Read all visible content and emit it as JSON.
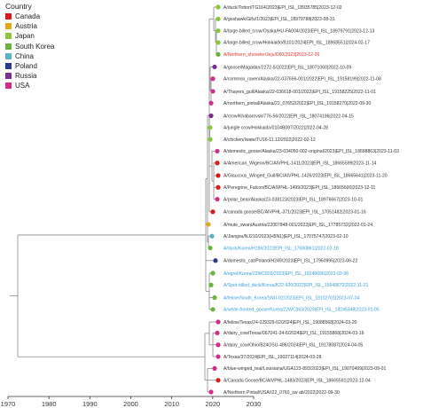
{
  "legend": {
    "title": "Country",
    "items": [
      {
        "label": "Canada",
        "color": "#d7191c"
      },
      {
        "label": "Austria",
        "color": "#e6a817"
      },
      {
        "label": "Japan",
        "color": "#8cc63f"
      },
      {
        "label": "South Korea",
        "color": "#6bb33a"
      },
      {
        "label": "China",
        "color": "#5ab4c4"
      },
      {
        "label": "Poland",
        "color": "#2b3a8f"
      },
      {
        "label": "Russia",
        "color": "#7b2d8e"
      },
      {
        "label": "USA",
        "color": "#d12e8b"
      }
    ]
  },
  "axis": {
    "ticks": [
      "1970",
      "1980",
      "1990",
      "2000",
      "2010",
      "2020",
      "2030"
    ]
  },
  "tips": [
    {
      "label": "A/duck/Tottori/TG164/2023|EPI_ISL_18935785|2023-12-02",
      "country": "Japan",
      "highlight": false
    },
    {
      "label": "A/goshawk/Gifu/1/2023|EPI_ISL_18979788|2023-08-31",
      "country": "Japan",
      "highlight": false
    },
    {
      "label": "A/large-billed_crow/Osaka/HU-FA004/2023|EPI_ISL_18979791|2023-12-13",
      "country": "Japan",
      "highlight": false
    },
    {
      "label": "A/large-billed_crow/Hokkaido/B101/2024|EPI_ISL_18968551|2024-02-17",
      "country": "Japan",
      "highlight": false
    },
    {
      "label": "A/Northern_shoveler/Jeju/D60/2023|2023-12-26",
      "country": "South Korea",
      "highlight": true,
      "highlight_color": "#e0312b"
    },
    {
      "label": "A/goose/Magadan/2272-5/2022|EPI_ISL_18071060|2022-10-09",
      "country": "Russia",
      "highlight": false
    },
    {
      "label": "A/common_raven/Alaska/22-037656-001/2022|EPI_ISL_19158199|2022-11-08",
      "country": "USA",
      "highlight": false
    },
    {
      "label": "A/Thayers_gull/Alaska/22-036618-001/2022|EPI_ISL_19158225|2022-11-01",
      "country": "USA",
      "highlight": false
    },
    {
      "label": "A/northern_pintail/Alaska/22_07652/2022|EPI_ISL_19158270|2022-09-30",
      "country": "USA",
      "highlight": false
    },
    {
      "label": "A/crow/Khabarovsk/776-56/2022|EPI_ISL_18074196|2022-04-15",
      "country": "Russia",
      "highlight": false
    },
    {
      "label": "A/jungle crow/Hokkaido/0104B087/2022|2022-04-28",
      "country": "Japan",
      "highlight": false
    },
    {
      "label": "A/chicken/Iwate/TU16-11.12/2022|2022-02-12",
      "country": "Japan",
      "highlight": false
    },
    {
      "label": "A/domestic_goose/Alaska/23-034050-002-original/2023|EPI_ISL_18698863|2023-11-03",
      "country": "USA",
      "highlight": false
    },
    {
      "label": "A/American_Wigeon/BC/AIVPHL-1411/2023|EPI_ISL_18665599|2023-11-14",
      "country": "Canada",
      "highlight": false
    },
    {
      "label": "A/Glaucous_Winged_Gull/BC/AIVPHL-1426/2023|EPI_ISL_18665641|2023-11-20",
      "country": "Canada",
      "highlight": false
    },
    {
      "label": "A/Peregrine_Falcon/BC/AIVPHL-1499/2023|EPI_ISL_18665600|2023-12-11",
      "country": "Canada",
      "highlight": false
    },
    {
      "label": "A/polar_bear/Alaska/23-038123/2023|EPI_ISL_18976667|2023-10-01",
      "country": "USA",
      "highlight": false
    },
    {
      "label": "A/canada goose/BC/AIVPHL-371/2023|EPI_ISL_17051482|2023-01-16",
      "country": "Canada",
      "highlight": false
    },
    {
      "label": "A/mute_swan/Austria/22007848-001/2022|EPI_ISL_17785732|2022-01-24",
      "country": "Austria",
      "highlight": false
    },
    {
      "label": "A/Jiangsu/NJ210/2023(H5N1)|EPI_ISL_17075747|2023-02-10",
      "country": "China",
      "highlight": false
    },
    {
      "label": "A/duck/Korea/H186/2022|EPI_ISL_17680861|2022-02-18",
      "country": "South Korea",
      "highlight": true,
      "highlight_color": "#3b9fd6"
    },
    {
      "label": "A/domestic_cat/Poland/H249/2023|EPI_ISL_17950995|2023-06-22",
      "country": "Poland",
      "highlight": false
    },
    {
      "label": "A/egret/Korea/22WC603/2023|EPI_ISL_18248686|2023-03-06",
      "country": "South Korea",
      "highlight": true,
      "highlight_color": "#3b9fd6"
    },
    {
      "label": "A/Spot-billed_duck/Korea/K22-920/2022|EPI_ISL_15948672|2022-11-21",
      "country": "South Korea",
      "highlight": true,
      "highlight_color": "#3b9fd6"
    },
    {
      "label": "A/feline/South_Korea/SNU-02/2023|EPI_ISL_18102701|2023-07-04",
      "country": "South Korea",
      "highlight": true,
      "highlight_color": "#3b9fd6"
    },
    {
      "label": "A/white-fronted_goose/Korea/22WC363/2023|EPI_ISL_18245348|2023-01-05",
      "country": "South Korea",
      "highlight": true,
      "highlight_color": "#3b9fd6"
    },
    {
      "label": "A/feline/Texas/24-029329-02/2024|EPI_ISL_19088568|2024-03-20",
      "country": "USA",
      "highlight": false
    },
    {
      "label": "A/dairy_cow/Texas/067041-24-6/2024|EPI_ISL_19155868|2024-03-16",
      "country": "USA",
      "highlight": false
    },
    {
      "label": "A/dairy_cow/Ohio/B24OSU-486/2024|EPI_ISL_19178087|2024-04-05",
      "country": "USA",
      "highlight": false
    },
    {
      "label": "A/Texas/37/2024|EPI_ISL_19027114|2024-03-28",
      "country": "USA",
      "highlight": false
    },
    {
      "label": "A/blue-winged_teal/Louisiana/UGA123-893/2023|EPI_ISL_19070499|2023-09-01",
      "country": "USA",
      "highlight": false
    },
    {
      "label": "A/Canada Goose/BC/AIVPHL-1483/2023|EPI_ISL_18665591|2023-12-04",
      "country": "Canada",
      "highlight": false
    },
    {
      "label": "A/Northern Pintail/USA/I22_0760_sw ab/2022|2022-09-30",
      "country": "USA",
      "highlight": false
    }
  ]
}
